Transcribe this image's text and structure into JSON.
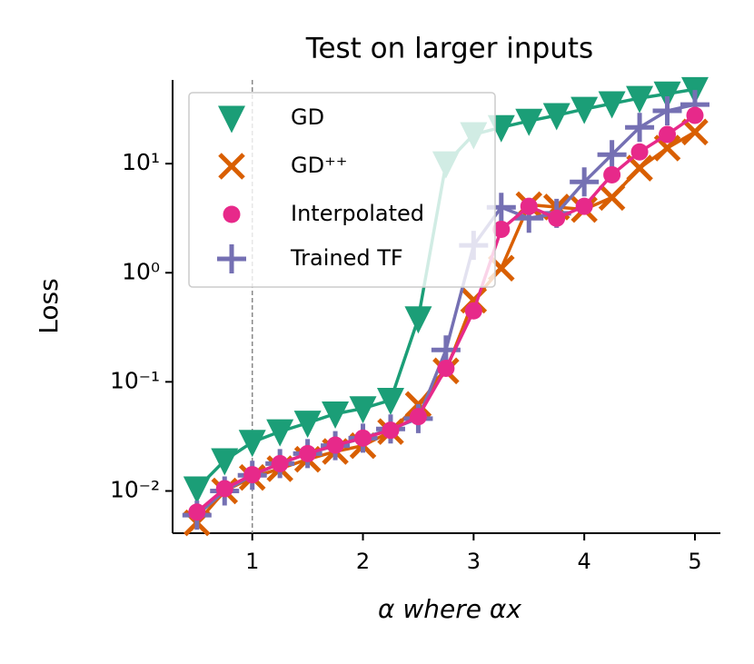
{
  "chart_data": {
    "type": "line",
    "title": "Test on larger inputs",
    "x_label": "α   where αx",
    "y_label": "Loss",
    "x": [
      0.5,
      0.75,
      1.0,
      1.25,
      1.5,
      1.75,
      2.0,
      2.25,
      2.5,
      2.75,
      3.0,
      3.25,
      3.5,
      3.75,
      4.0,
      4.25,
      4.5,
      4.75,
      5.0
    ],
    "series": [
      {
        "name": "GD",
        "color": "#1b9e77",
        "marker": "triangle-down",
        "values": [
          0.0105,
          0.019,
          0.028,
          0.035,
          0.042,
          0.051,
          0.057,
          0.068,
          0.38,
          10,
          18.5,
          21.5,
          24.6,
          27.7,
          31.6,
          35.5,
          39.8,
          43.7,
          48
        ]
      },
      {
        "name": "GD⁺⁺",
        "color": "#d95f02",
        "marker": "x",
        "values": [
          0.0051,
          0.01,
          0.0133,
          0.016,
          0.0195,
          0.023,
          0.026,
          0.035,
          0.062,
          0.126,
          0.56,
          1.1,
          4.2,
          4.0,
          3.8,
          4.9,
          9.1,
          13.9,
          19.5
        ]
      },
      {
        "name": "Interpolated",
        "color": "#e7298a",
        "marker": "circle",
        "values": [
          0.0064,
          0.0105,
          0.0141,
          0.0178,
          0.022,
          0.0263,
          0.0305,
          0.036,
          0.048,
          0.133,
          0.447,
          2.5,
          4.06,
          3.16,
          4.06,
          7.9,
          12.8,
          18.5,
          27.7
        ]
      },
      {
        "name": "Trained TF",
        "color": "#7570b3",
        "marker": "plus",
        "values": [
          0.006,
          0.01,
          0.0139,
          0.0178,
          0.022,
          0.026,
          0.0305,
          0.037,
          0.046,
          0.196,
          1.78,
          3.98,
          3.16,
          3.5,
          6.8,
          12.1,
          21.5,
          30.5,
          34.8
        ]
      }
    ],
    "xlim": [
      0.28,
      5.23
    ],
    "xticks": [
      1,
      2,
      3,
      4,
      5
    ],
    "ylim": [
      0.0041,
      58.5
    ],
    "log_y": true,
    "yticks": [
      {
        "value": 0.01,
        "label": "10⁻²"
      },
      {
        "value": 0.1,
        "label": "10⁻¹"
      },
      {
        "value": 1,
        "label": "10⁰"
      },
      {
        "value": 10,
        "label": "10¹"
      }
    ],
    "vline": 1,
    "legend": "upper left"
  }
}
